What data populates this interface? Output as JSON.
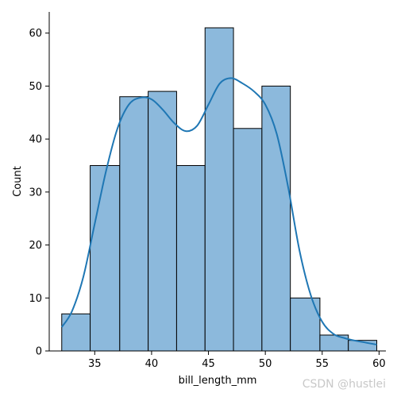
{
  "chart_data": {
    "type": "histogram",
    "xlabel": "bill_length_mm",
    "ylabel": "Count",
    "xlim": [
      31.0,
      60.6
    ],
    "ylim": [
      0,
      64
    ],
    "bins": [
      {
        "x0": 32.1,
        "x1": 34.6,
        "count": 7
      },
      {
        "x0": 34.6,
        "x1": 37.2,
        "count": 35
      },
      {
        "x0": 37.2,
        "x1": 39.7,
        "count": 48
      },
      {
        "x0": 39.7,
        "x1": 42.2,
        "count": 49
      },
      {
        "x0": 42.2,
        "x1": 44.7,
        "count": 35
      },
      {
        "x0": 44.7,
        "x1": 47.2,
        "count": 61
      },
      {
        "x0": 47.2,
        "x1": 49.7,
        "count": 42
      },
      {
        "x0": 49.7,
        "x1": 52.2,
        "count": 50
      },
      {
        "x0": 52.2,
        "x1": 54.8,
        "count": 10
      },
      {
        "x0": 54.8,
        "x1": 57.3,
        "count": 3
      },
      {
        "x0": 57.3,
        "x1": 59.8,
        "count": 2
      }
    ],
    "kde": {
      "x": [
        32.1,
        33.0,
        34.0,
        35.0,
        36.0,
        37.0,
        38.0,
        39.0,
        40.0,
        41.0,
        42.0,
        43.0,
        44.0,
        45.0,
        46.0,
        47.0,
        48.0,
        49.0,
        50.0,
        51.0,
        52.0,
        53.0,
        54.0,
        55.0,
        56.0,
        57.0,
        58.0,
        59.8
      ],
      "y": [
        4.5,
        7.5,
        14,
        24,
        34,
        42,
        46.5,
        47.8,
        47.5,
        45.5,
        43,
        41.5,
        42.5,
        46.5,
        50.5,
        51.5,
        50.5,
        49,
        46.5,
        41,
        31,
        19,
        10.5,
        5.5,
        3.2,
        2.4,
        1.9,
        1.2
      ]
    },
    "xticks": [
      35,
      40,
      45,
      50,
      55,
      60
    ],
    "yticks": [
      0,
      10,
      20,
      30,
      40,
      50,
      60
    ],
    "colors": {
      "bar_fill": "#8cb9dc",
      "bar_edge": "#000000",
      "kde_line": "#1f77b4",
      "axis": "#000000"
    },
    "grid": false,
    "legend": "none"
  },
  "watermark": "CSDN @hustlei"
}
